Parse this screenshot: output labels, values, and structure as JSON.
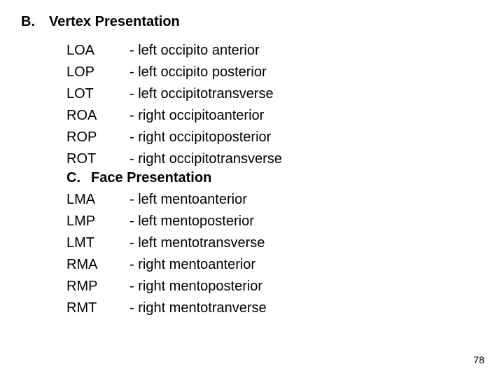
{
  "sectionB": {
    "marker": "B.",
    "title": "Vertex Presentation",
    "items": [
      {
        "abbrev": "LOA",
        "desc": "- left occipito anterior"
      },
      {
        "abbrev": "LOP",
        "desc": "- left occipito posterior"
      },
      {
        "abbrev": "LOT",
        "desc": "- left occipitotransverse"
      },
      {
        "abbrev": "ROA",
        "desc": "- right occipitoanterior"
      },
      {
        "abbrev": "ROP",
        "desc": "- right occipitoposterior"
      },
      {
        "abbrev": "ROT",
        "desc": "- right occipitotransverse"
      }
    ]
  },
  "sectionC": {
    "marker": "C.",
    "title": "Face Presentation",
    "items": [
      {
        "abbrev": "LMA",
        "desc": "- left mentoanterior"
      },
      {
        "abbrev": "LMP",
        "desc": "- left mentoposterior"
      },
      {
        "abbrev": "LMT",
        "desc": "- left mentotransverse"
      },
      {
        "abbrev": "RMA",
        "desc": "- right mentoanterior"
      },
      {
        "abbrev": "RMP",
        "desc": "- right mentoposterior"
      },
      {
        "abbrev": "RMT",
        "desc": "- right mentotranverse"
      }
    ]
  },
  "pageNumber": "78"
}
